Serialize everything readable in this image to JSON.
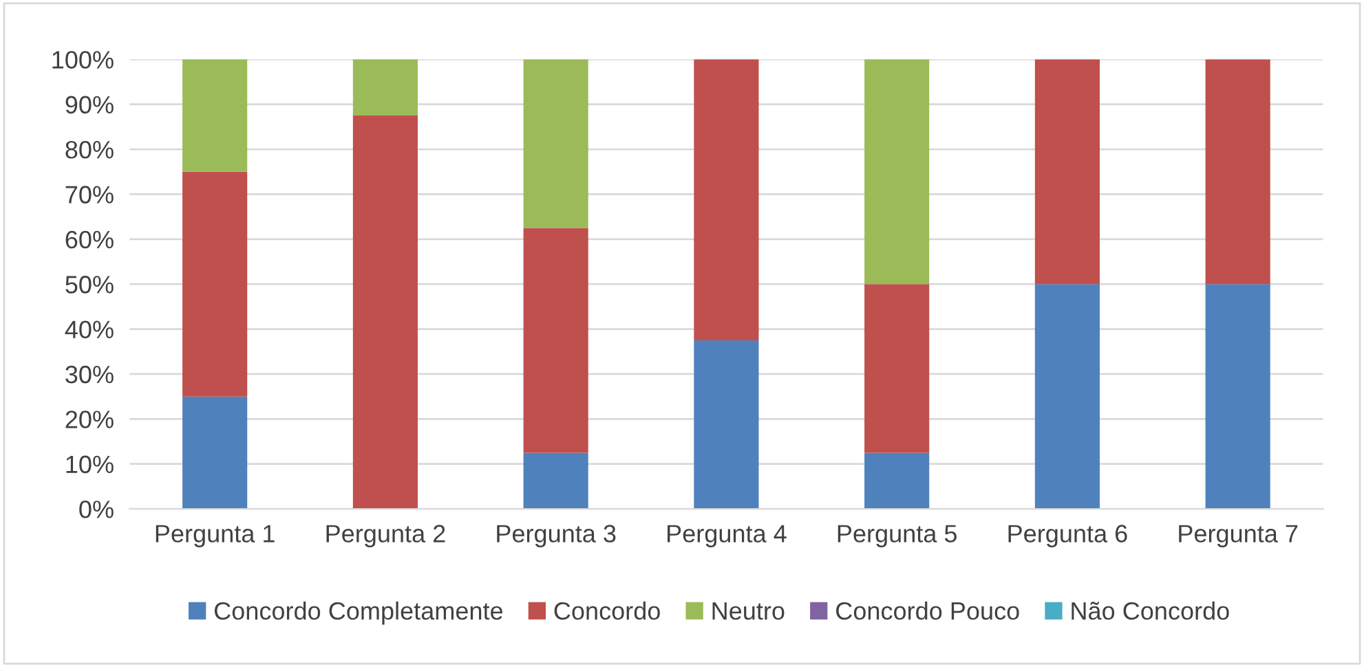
{
  "chart_data": {
    "type": "bar",
    "stacked": true,
    "categories": [
      "Pergunta 1",
      "Pergunta 2",
      "Pergunta 3",
      "Pergunta 4",
      "Pergunta 5",
      "Pergunta 6",
      "Pergunta 7"
    ],
    "series": [
      {
        "name": "Concordo Completamente",
        "color": "#4f81bd",
        "values": [
          25,
          0,
          12.5,
          37.5,
          12.5,
          50,
          50
        ]
      },
      {
        "name": "Concordo",
        "color": "#c0504d",
        "values": [
          50,
          87.5,
          50,
          62.5,
          37.5,
          50,
          50
        ]
      },
      {
        "name": "Neutro",
        "color": "#9bbb59",
        "values": [
          25,
          12.5,
          37.5,
          0,
          50,
          0,
          0
        ]
      },
      {
        "name": "Concordo Pouco",
        "color": "#8064a2",
        "values": [
          0,
          0,
          0,
          0,
          0,
          0,
          0
        ]
      },
      {
        "name": "Não Concordo",
        "color": "#4bacc6",
        "values": [
          0,
          0,
          0,
          0,
          0,
          0,
          0
        ]
      }
    ],
    "ylim": [
      0,
      100
    ],
    "yticks": [
      {
        "value": 0,
        "label": "0%"
      },
      {
        "value": 10,
        "label": "10%"
      },
      {
        "value": 20,
        "label": "20%"
      },
      {
        "value": 30,
        "label": "30%"
      },
      {
        "value": 40,
        "label": "40%"
      },
      {
        "value": 50,
        "label": "50%"
      },
      {
        "value": 60,
        "label": "60%"
      },
      {
        "value": 70,
        "label": "70%"
      },
      {
        "value": 80,
        "label": "80%"
      },
      {
        "value": 90,
        "label": "90%"
      },
      {
        "value": 100,
        "label": "100%"
      }
    ],
    "grid": "y",
    "legend": "bottom"
  }
}
